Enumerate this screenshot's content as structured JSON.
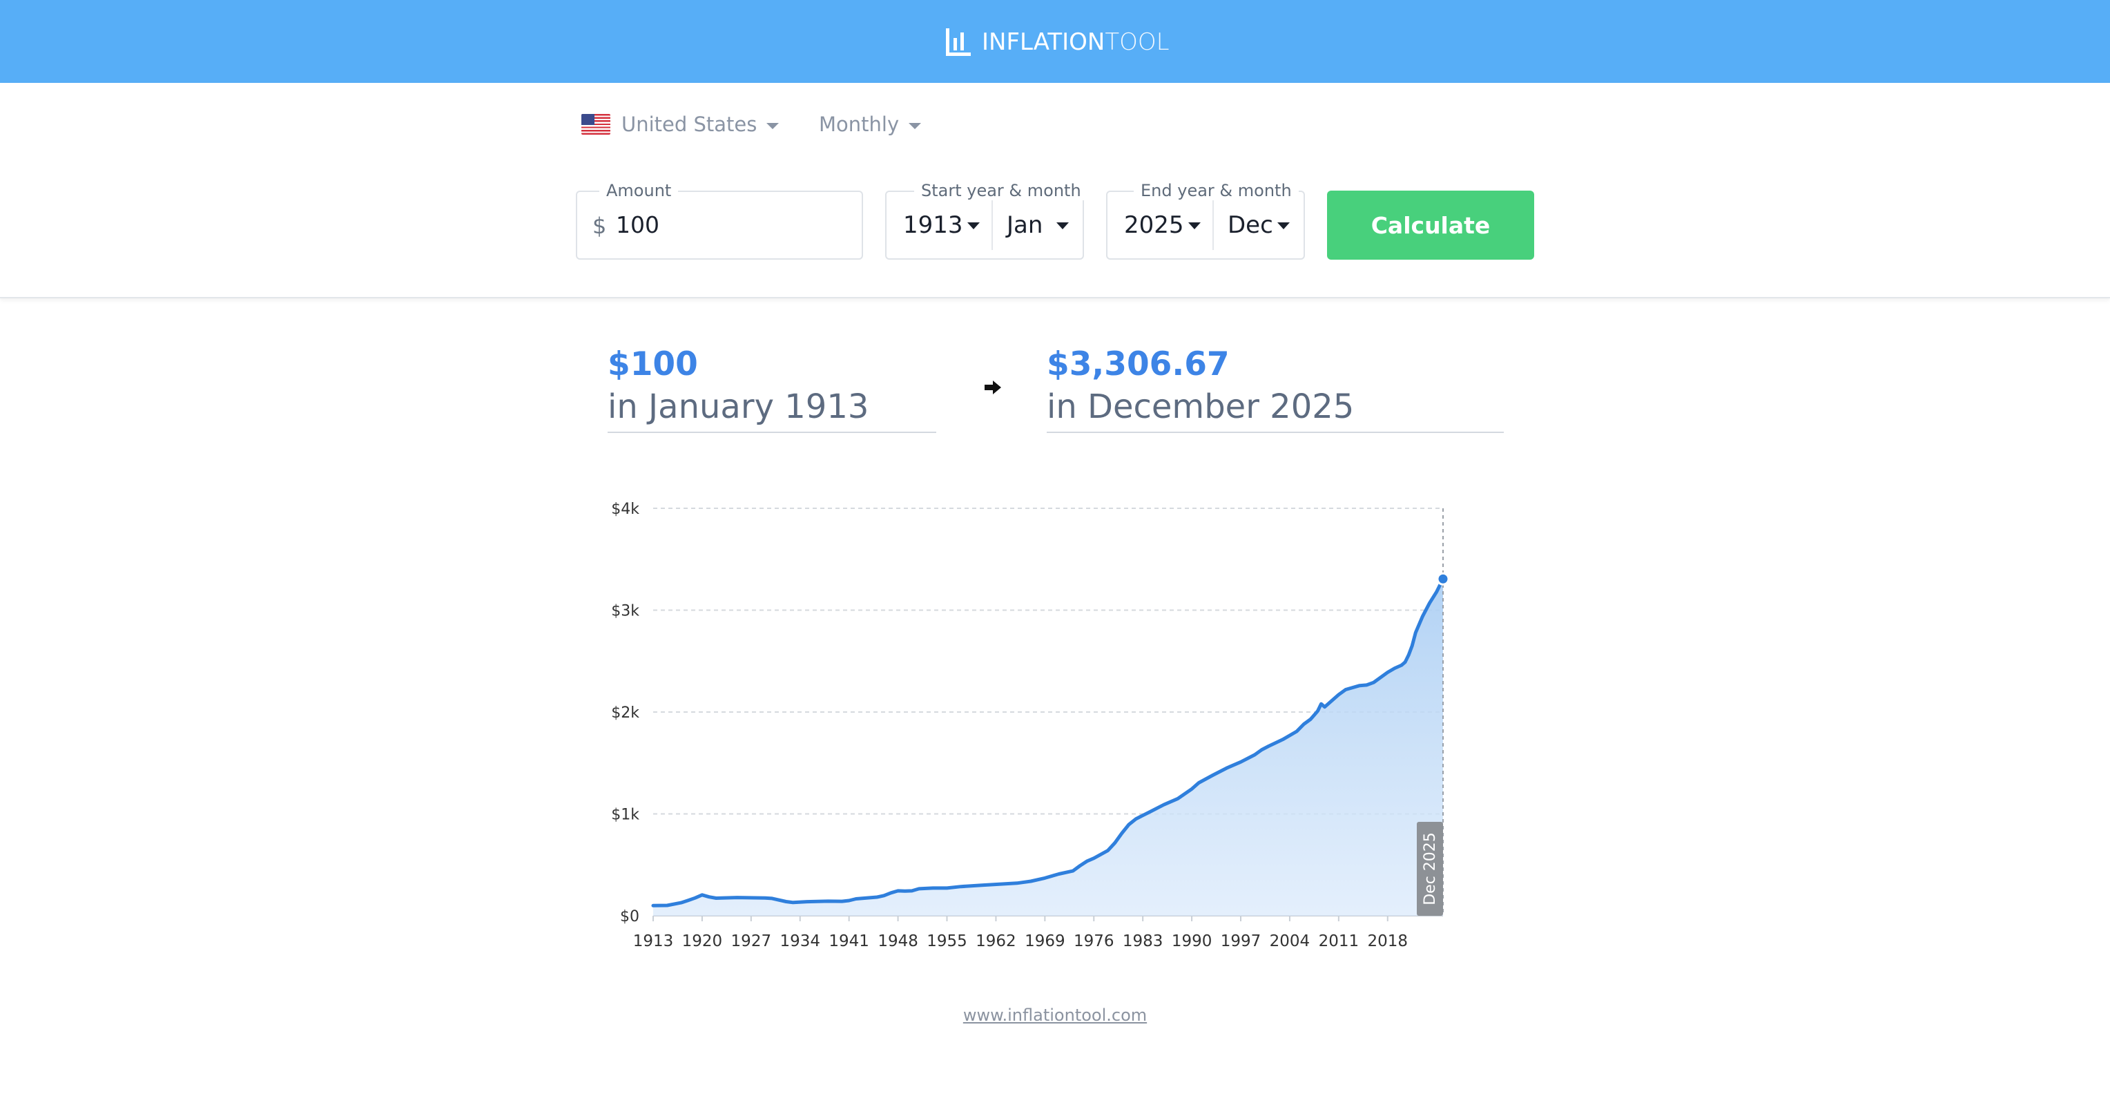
{
  "header": {
    "brand_bold": "INFLATION",
    "brand_light": "TOOL",
    "brand_icon": "bar-chart-icon"
  },
  "controls": {
    "country": "United States",
    "frequency": "Monthly",
    "amount_label": "Amount",
    "currency_symbol": "$",
    "amount_value": "100",
    "start_label": "Start year & month",
    "start_year": "1913",
    "start_month": "Jan",
    "end_label": "End year & month",
    "end_year": "2025",
    "end_month": "Dec",
    "calculate_label": "Calculate"
  },
  "result": {
    "from_amount": "$100",
    "from_date": "in January 1913",
    "to_amount": "$3,306.67",
    "to_date": "in December 2025"
  },
  "colors": {
    "header": "#57aef7",
    "accent": "#3d84e6",
    "button": "#48d07c",
    "line": "#2f7fdc"
  },
  "chart_data": {
    "type": "area",
    "title": "",
    "xlabel": "",
    "ylabel": "",
    "ylim": [
      0,
      4000
    ],
    "xlim": [
      1913,
      2025.92
    ],
    "y_ticks": [
      {
        "value": 0,
        "label": "$0"
      },
      {
        "value": 1000,
        "label": "$1k"
      },
      {
        "value": 2000,
        "label": "$2k"
      },
      {
        "value": 3000,
        "label": "$3k"
      },
      {
        "value": 4000,
        "label": "$4k"
      }
    ],
    "x_ticks": [
      "1913",
      "1920",
      "1927",
      "1934",
      "1941",
      "1948",
      "1955",
      "1962",
      "1969",
      "1976",
      "1983",
      "1990",
      "1997",
      "2004",
      "2011",
      "2018"
    ],
    "grid": true,
    "legend": "none",
    "crosshair_label": "Dec 2025",
    "series": [
      {
        "x": [
          1913,
          1915,
          1917,
          1918,
          1919,
          1920,
          1921,
          1922,
          1925,
          1929,
          1930,
          1932,
          1933,
          1935,
          1938,
          1940,
          1941,
          1942,
          1945,
          1946,
          1947,
          1948,
          1949,
          1950,
          1951,
          1953,
          1955,
          1957,
          1960,
          1965,
          1967,
          1969,
          1971,
          1973,
          1974,
          1975,
          1976,
          1978,
          1979,
          1980,
          1981,
          1982,
          1983,
          1984,
          1986,
          1988,
          1990,
          1991,
          1993,
          1995,
          1997,
          1999,
          2000,
          2001,
          2003,
          2005,
          2006,
          2007,
          2008,
          2008.5,
          2009,
          2010,
          2011,
          2012,
          2014,
          2015,
          2016,
          2018,
          2019,
          2020,
          2020.5,
          2021,
          2021.5,
          2022,
          2023,
          2024,
          2025,
          2025.92
        ],
        "y": [
          100,
          102,
          128,
          151,
          175,
          205,
          185,
          173,
          179,
          174,
          170,
          139,
          130,
          138,
          143,
          142,
          149,
          166,
          183,
          198,
          225,
          245,
          243,
          245,
          265,
          272,
          272,
          287,
          300,
          320,
          339,
          370,
          410,
          440,
          490,
          535,
          565,
          640,
          715,
          810,
          895,
          950,
          985,
          1020,
          1090,
          1150,
          1245,
          1305,
          1380,
          1450,
          1510,
          1580,
          1630,
          1665,
          1730,
          1810,
          1880,
          1930,
          2010,
          2080,
          2050,
          2110,
          2170,
          2220,
          2260,
          2265,
          2290,
          2390,
          2430,
          2460,
          2490,
          2560,
          2650,
          2780,
          2940,
          3070,
          3180,
          3306.67
        ]
      }
    ]
  },
  "footer": {
    "link": "www.inflationtool.com"
  }
}
